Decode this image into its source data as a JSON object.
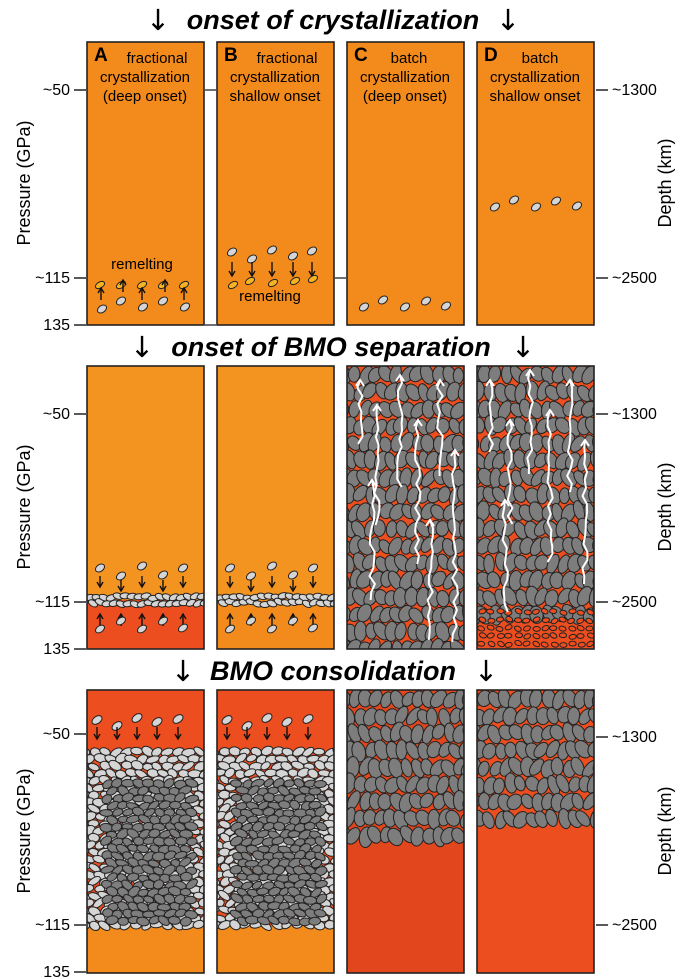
{
  "stages": [
    {
      "label": "onset of crystallization"
    },
    {
      "label": "onset of BMO separation"
    },
    {
      "label": "BMO consolidation"
    }
  ],
  "arrow_glyph": "↓",
  "axes": {
    "left_title": "Pressure (GPa)",
    "right_title": "Depth (km)",
    "left_ticks": [
      "~50",
      "~115",
      "135"
    ],
    "right_ticks": [
      "~1300",
      "~2500"
    ]
  },
  "panels": [
    {
      "letter": "A",
      "line1": "fractional",
      "line2": "crystallization",
      "line3": "(deep onset)"
    },
    {
      "letter": "B",
      "line1": "fractional",
      "line2": "crystallization",
      "line3": "shallow onset"
    },
    {
      "letter": "C",
      "line1": "batch",
      "line2": "crystallization",
      "line3": "(deep onset)"
    },
    {
      "letter": "D",
      "line1": "batch",
      "line2": "crystallization",
      "line3": "shallow onset"
    }
  ],
  "annotations": {
    "remelting_a": "remelting",
    "remelting_b": "remelting"
  },
  "colors": {
    "magma_orange": "#f28a1c",
    "magma_orange_light": "#f39320",
    "magma_red": "#ec4e1f",
    "magma_red_dark": "#e2461c",
    "crystal_gray": "#7d7d7d",
    "crystal_light": "#d5d5d5",
    "remelt_yellow": "#f6b321",
    "outline": "#222222"
  }
}
